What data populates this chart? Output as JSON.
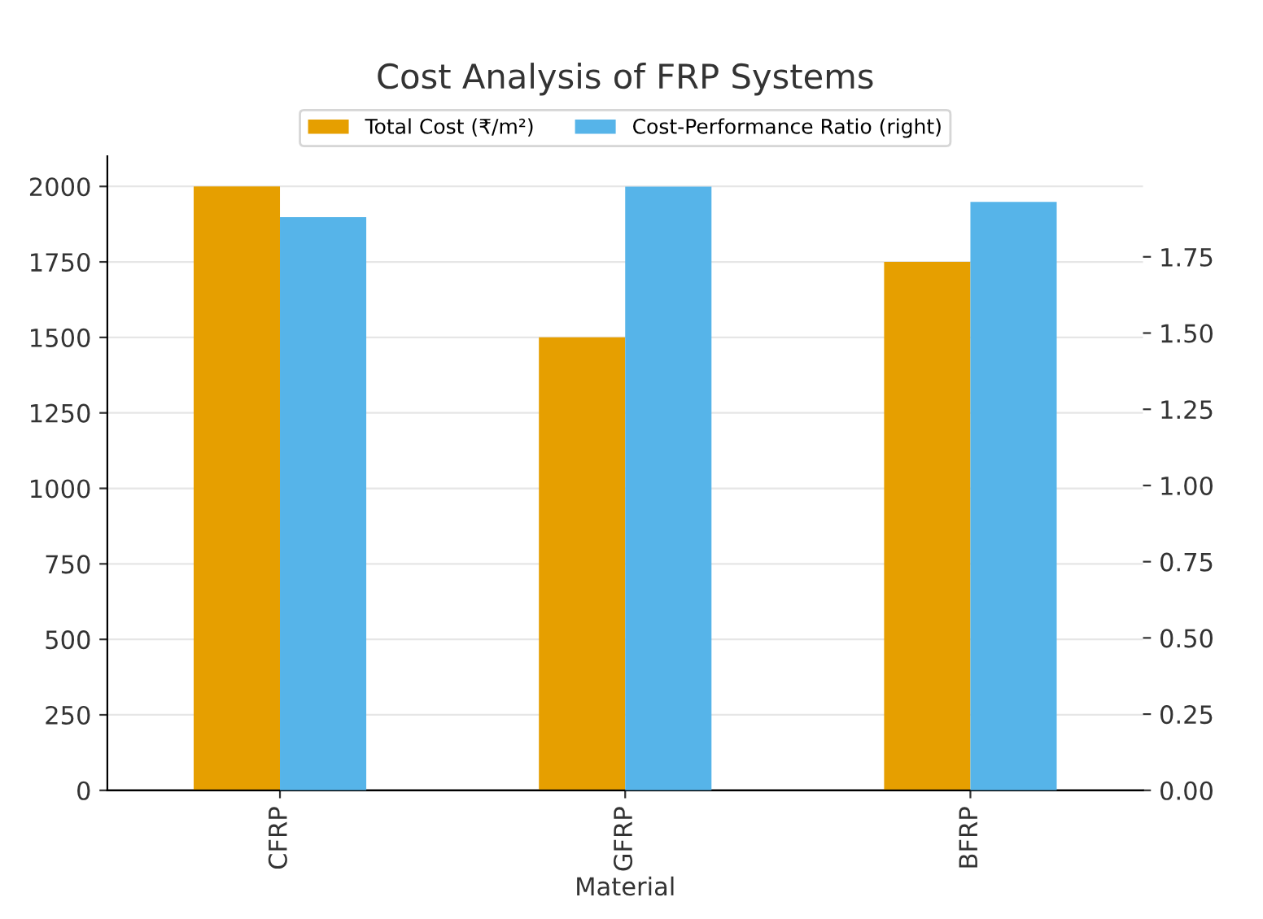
{
  "chart_data": {
    "type": "bar",
    "title": "Cost Analysis of FRP Systems",
    "xlabel": "Material",
    "categories": [
      "CFRP",
      "GFRP",
      "BFRP"
    ],
    "series": [
      {
        "name": "Total Cost (₹/m²)",
        "color": "#e69f00",
        "values": [
          2000,
          1500,
          1750
        ]
      },
      {
        "name": "Cost-Performance Ratio (right)",
        "color": "#56b4e9",
        "values": [
          1.88,
          1.98,
          1.93
        ],
        "axis": "y2"
      }
    ],
    "ylim": [
      0,
      2100
    ],
    "yticks": [
      0,
      250,
      500,
      750,
      1000,
      1250,
      1500,
      1750,
      2000
    ],
    "y2lim": [
      0,
      2.08
    ],
    "y2ticks": [
      {
        "value": 0,
        "label": "0.00"
      },
      {
        "value": 0.25,
        "label": "0.25"
      },
      {
        "value": 0.5,
        "label": "0.50"
      },
      {
        "value": 0.75,
        "label": "0.75"
      },
      {
        "value": 1,
        "label": "1.00"
      },
      {
        "value": 1.25,
        "label": "1.25"
      },
      {
        "value": 1.5,
        "label": "1.50"
      },
      {
        "value": 1.75,
        "label": "1.75"
      }
    ],
    "grid": "y",
    "legend": "top"
  }
}
